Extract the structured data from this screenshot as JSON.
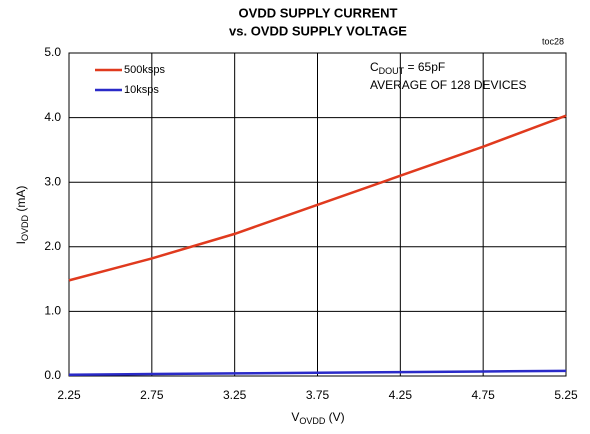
{
  "chart_data": {
    "type": "line",
    "title": [
      "OVDD SUPPLY CURRENT",
      "vs. OVDD SUPPLY VOLTAGE"
    ],
    "corner_label": "toc28",
    "x_label": {
      "main": "V",
      "sub": "OVDD",
      "unit": " (V)"
    },
    "y_label": {
      "main": "I",
      "sub": "OVDD",
      "unit": " (mA)"
    },
    "annotation": [
      {
        "main": "C",
        "sub": "DOUT",
        "unit": " = 65pF"
      },
      "AVERAGE OF 128 DEVICES"
    ],
    "x": [
      2.25,
      2.75,
      3.25,
      3.75,
      4.25,
      4.75,
      5.25
    ],
    "series": [
      {
        "name": "500ksps",
        "color": "#e03a1e",
        "values": [
          1.48,
          1.82,
          2.2,
          2.65,
          3.1,
          3.55,
          4.03
        ]
      },
      {
        "name": "10ksps",
        "color": "#2a2ac8",
        "values": [
          0.02,
          0.03,
          0.04,
          0.05,
          0.06,
          0.07,
          0.08
        ]
      }
    ],
    "xlim": [
      2.25,
      5.25
    ],
    "xticks": [
      2.25,
      2.75,
      3.25,
      3.75,
      4.25,
      4.75,
      5.25
    ],
    "ylim": [
      0,
      5
    ],
    "yticks": [
      {
        "value": 0,
        "label": "0.0"
      },
      {
        "value": 1,
        "label": "1.0"
      },
      {
        "value": 2,
        "label": "2.0"
      },
      {
        "value": 3,
        "label": "3.0"
      },
      {
        "value": 4,
        "label": "4.0"
      },
      {
        "value": 5,
        "label": "5.0"
      }
    ],
    "grid": true,
    "legend": "upper left"
  }
}
